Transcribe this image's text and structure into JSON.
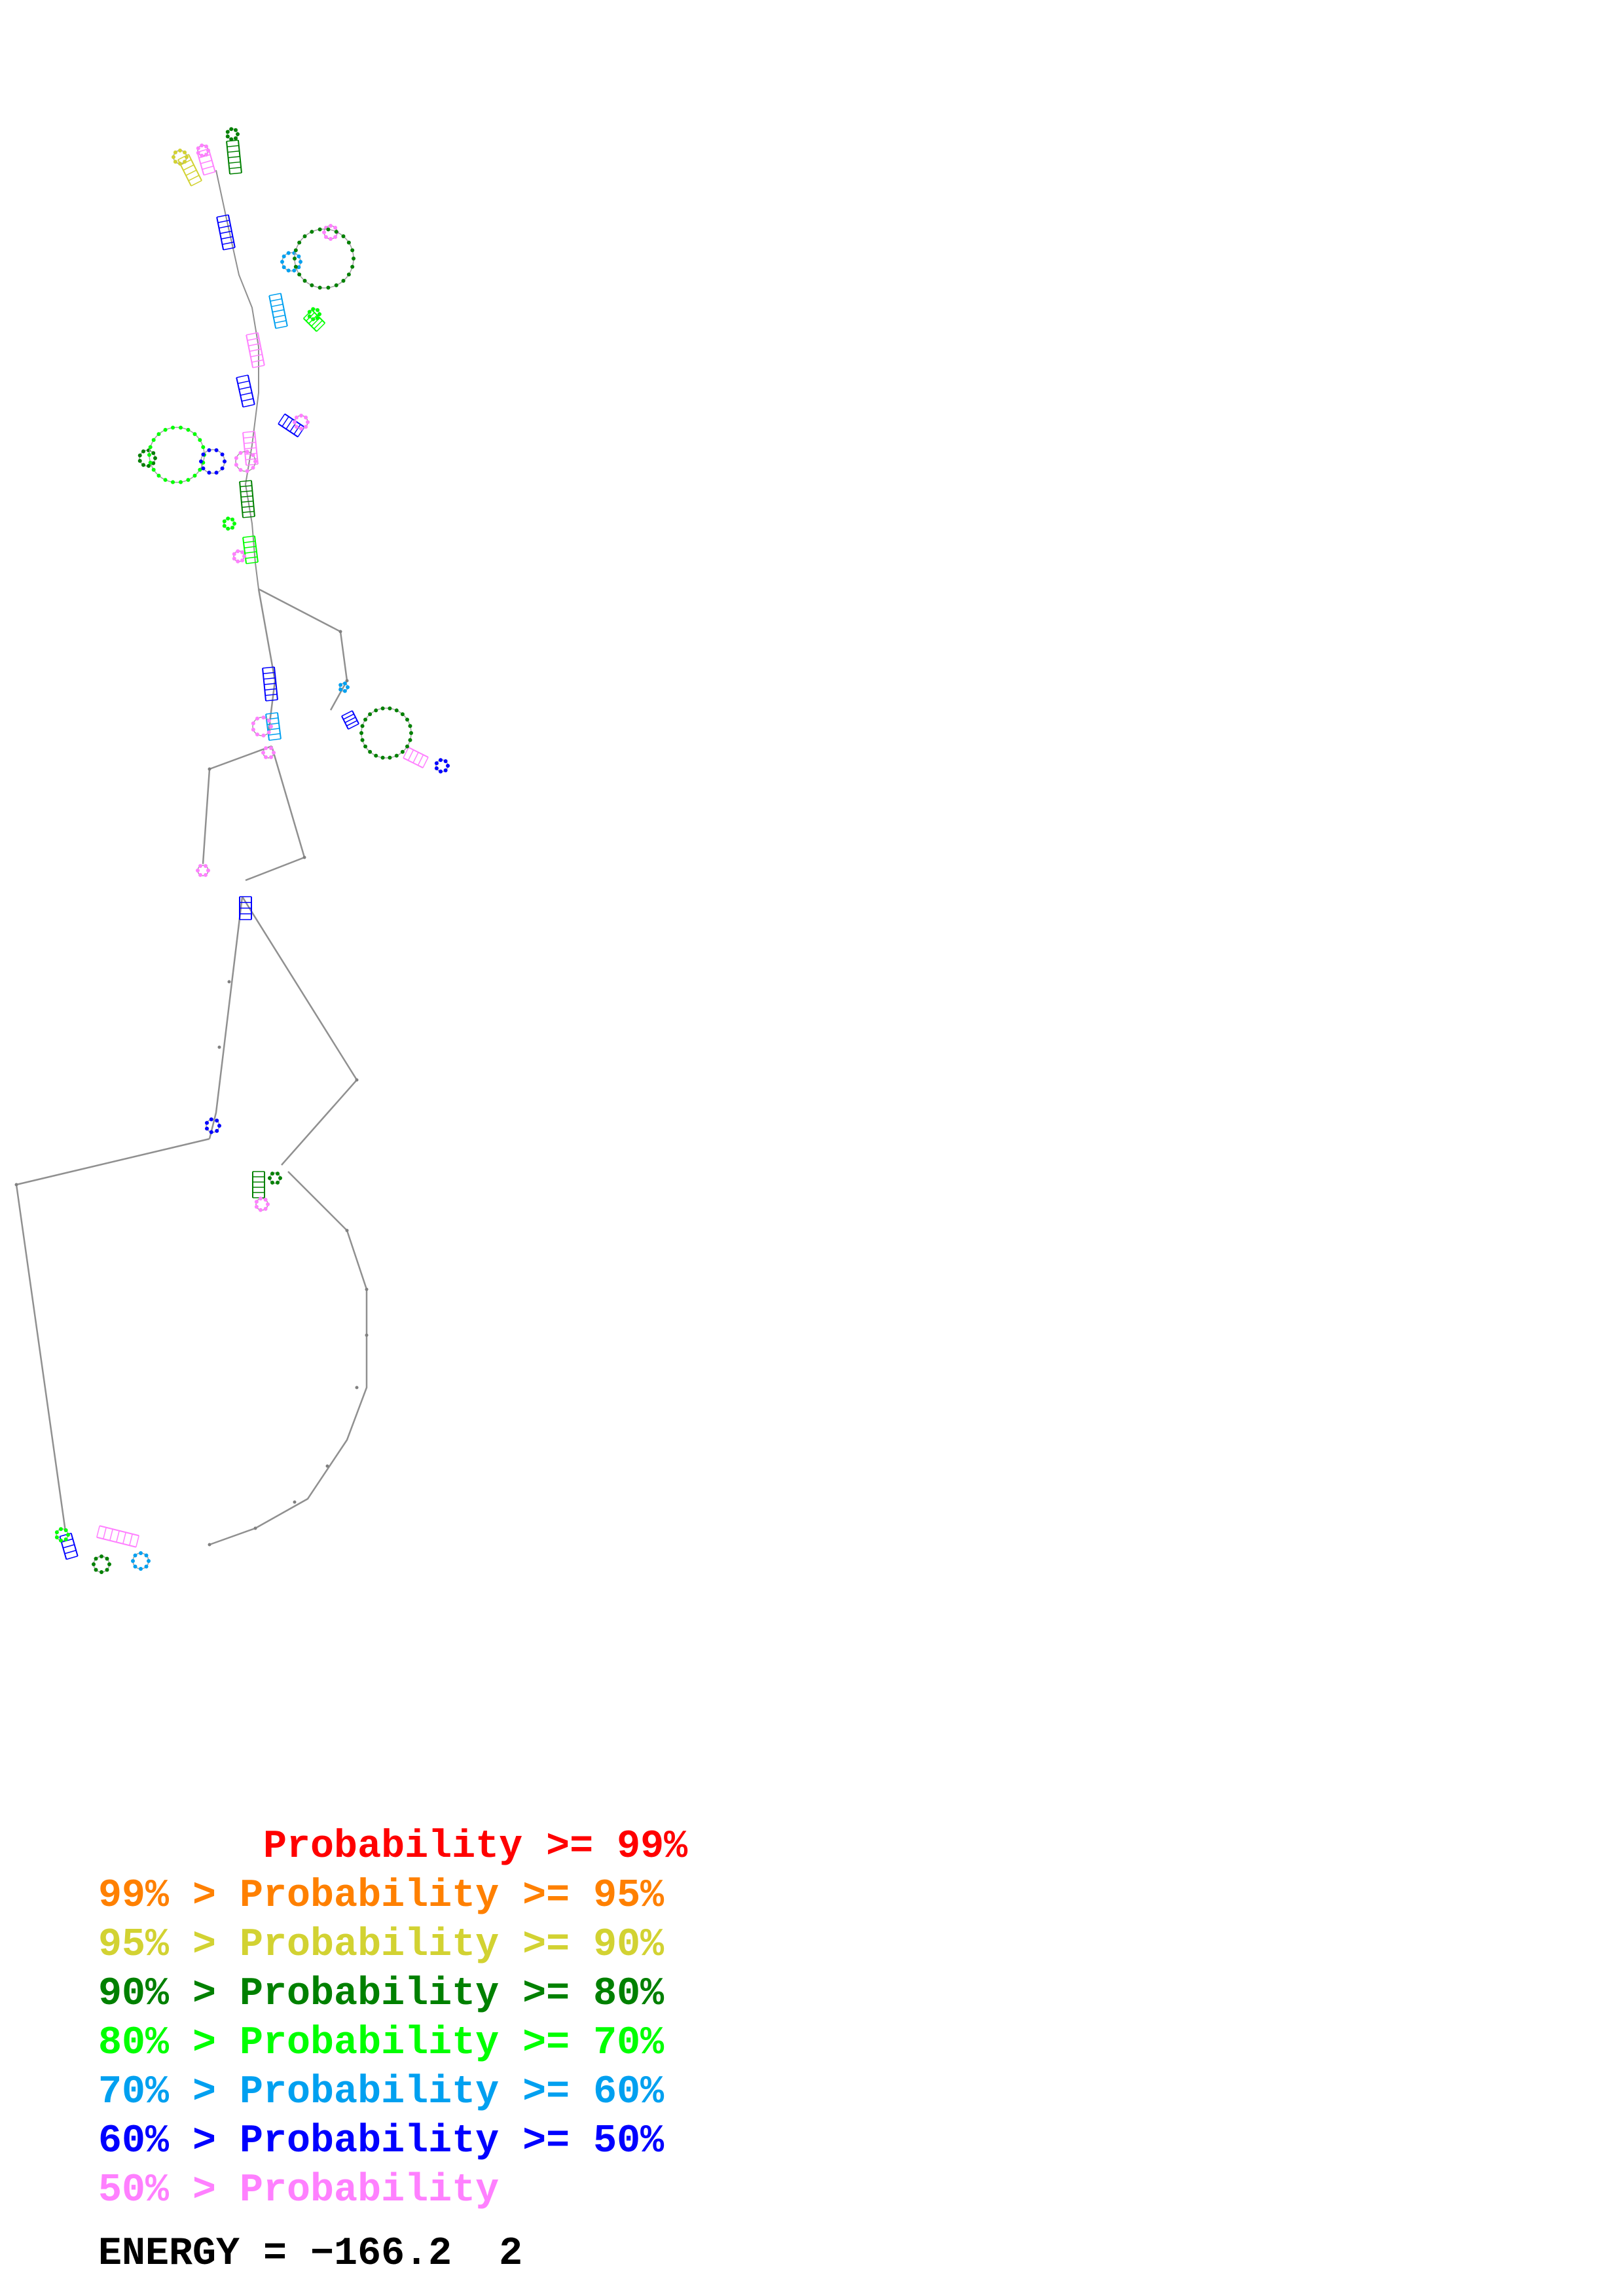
{
  "legend": {
    "rows": [
      {
        "text": "       Probability >= 99%",
        "color": "#ff0000"
      },
      {
        "text": "99% > Probability >= 95%",
        "color": "#ff8000"
      },
      {
        "text": "95% > Probability >= 90%",
        "color": "#d2d232"
      },
      {
        "text": "90% > Probability >= 80%",
        "color": "#008000"
      },
      {
        "text": "80% > Probability >= 70%",
        "color": "#00ff00"
      },
      {
        "text": "70% > Probability >= 60%",
        "color": "#00a0f0"
      },
      {
        "text": "60% > Probability >= 50%",
        "color": "#0000ff"
      },
      {
        "text": "50% > Probability",
        "color": "#ff80ff"
      }
    ]
  },
  "energy": {
    "label": "ENERGY = −166.2  2"
  },
  "colors": {
    "backbone": "#909090",
    "background": "#ffffff"
  }
}
